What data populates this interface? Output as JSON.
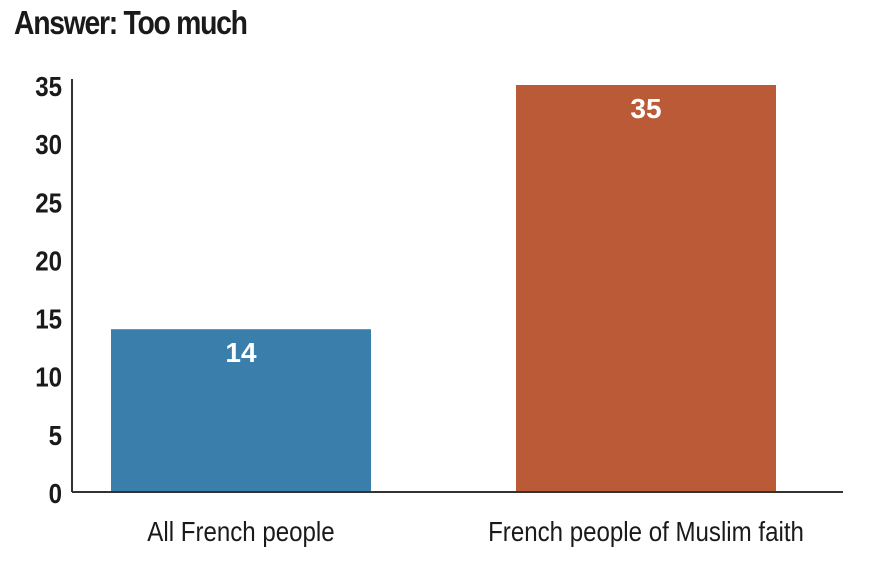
{
  "chart_data": {
    "type": "bar",
    "title": "Answer: Too much",
    "categories": [
      "All French people",
      "French people of Muslim faith"
    ],
    "values": [
      14,
      35
    ],
    "colors": [
      "#3a7fab",
      "#bb5a37"
    ],
    "xlabel": "",
    "ylabel": "",
    "ylim": [
      0,
      35
    ],
    "yticks": [
      0,
      5,
      10,
      15,
      20,
      25,
      30,
      35
    ],
    "grid": false,
    "data_labels": true
  }
}
